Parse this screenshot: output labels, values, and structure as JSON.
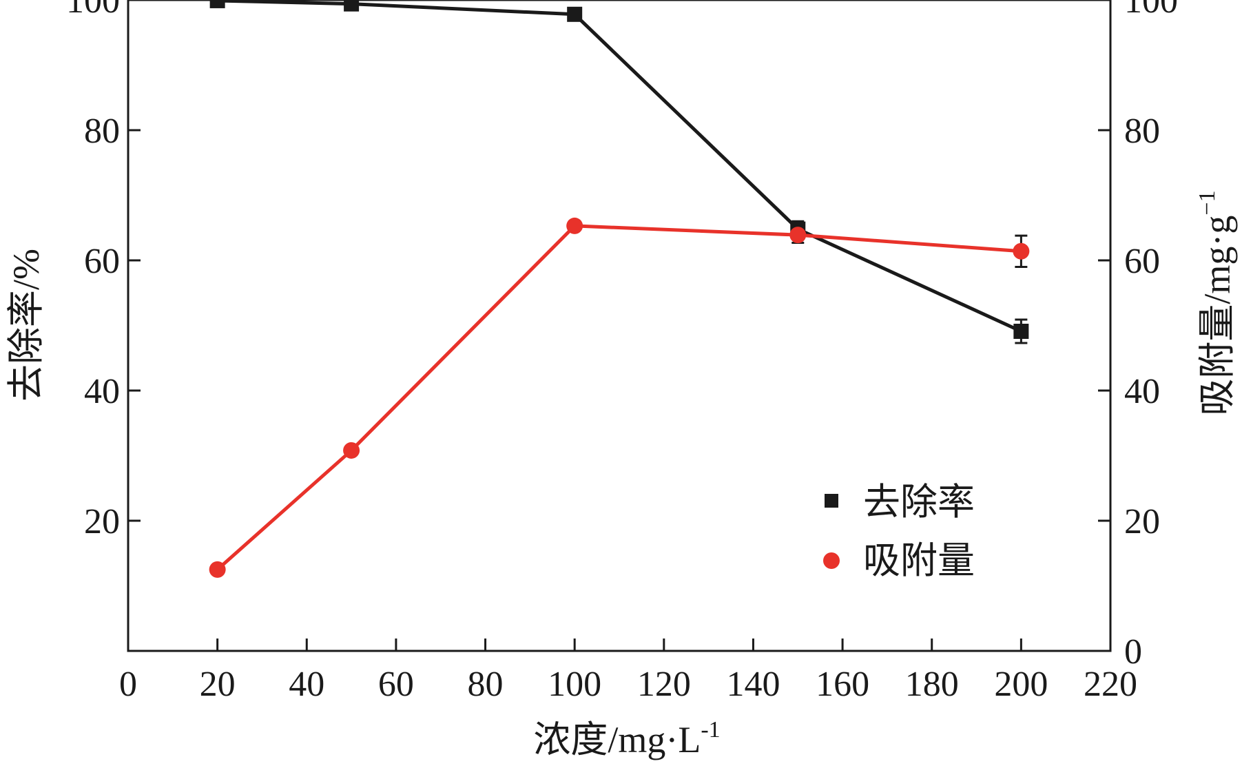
{
  "chart_data": {
    "type": "line",
    "x": [
      20,
      50,
      100,
      150,
      200
    ],
    "xlabel": "浓度/mg·L",
    "xlabel_sup": "-1",
    "xlim": [
      0,
      220
    ],
    "xticks": [
      0,
      20,
      40,
      60,
      80,
      100,
      120,
      140,
      160,
      180,
      200,
      220
    ],
    "ylabel_left": "去除率/%",
    "ylim_left": [
      0,
      100
    ],
    "yticks_left": [
      20,
      40,
      60,
      80,
      100
    ],
    "ylabel_right": "吸附量/mg·g",
    "ylabel_right_sup": "−1",
    "ylim_right": [
      0,
      100
    ],
    "yticks_right": [
      0,
      20,
      40,
      60,
      80,
      100
    ],
    "grid": false,
    "legend_position": "lower-right",
    "series": [
      {
        "name": "去除率",
        "axis": "left",
        "marker": "square",
        "color": "#1a1a1a",
        "values": [
          99.9,
          99.4,
          97.8,
          64.8,
          49.1
        ],
        "errors": [
          0.3,
          0.4,
          0.4,
          1.2,
          1.8
        ]
      },
      {
        "name": "吸附量",
        "axis": "right",
        "marker": "circle",
        "color": "#e8322a",
        "values": [
          12.5,
          30.8,
          65.3,
          63.9,
          61.4
        ],
        "errors": [
          0.3,
          0.4,
          0.4,
          1.2,
          2.4
        ]
      }
    ]
  }
}
